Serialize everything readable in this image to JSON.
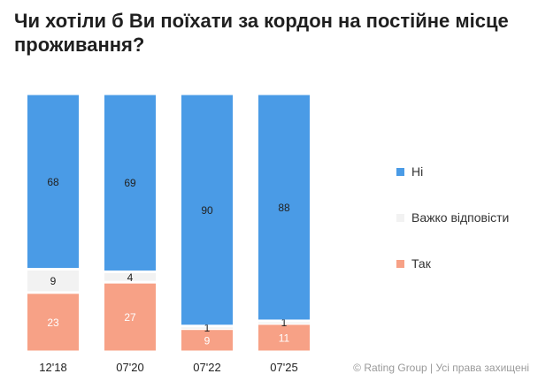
{
  "title": "Чи хотіли б Ви поїхати за кордон на постійне місце проживання?",
  "copyright": "© Rating Group | Усі права захищені",
  "colors": {
    "ni": "#4a9be6",
    "vazhko": "#f2f2f2",
    "tak": "#f7a186"
  },
  "chart_data": {
    "type": "bar",
    "stacked": true,
    "percent": true,
    "categories": [
      "12'18",
      "07'20",
      "07'22",
      "07'25"
    ],
    "series": [
      {
        "name": "Так",
        "values": [
          23,
          27,
          9,
          11
        ]
      },
      {
        "name": "Важко відповісти",
        "values": [
          9,
          4,
          1,
          1
        ]
      },
      {
        "name": "Ні",
        "values": [
          68,
          69,
          90,
          88
        ]
      }
    ],
    "ylim": [
      0,
      100
    ],
    "legend": [
      "Ні",
      "Важко відповісти",
      "Так"
    ],
    "legend_position": "right"
  }
}
